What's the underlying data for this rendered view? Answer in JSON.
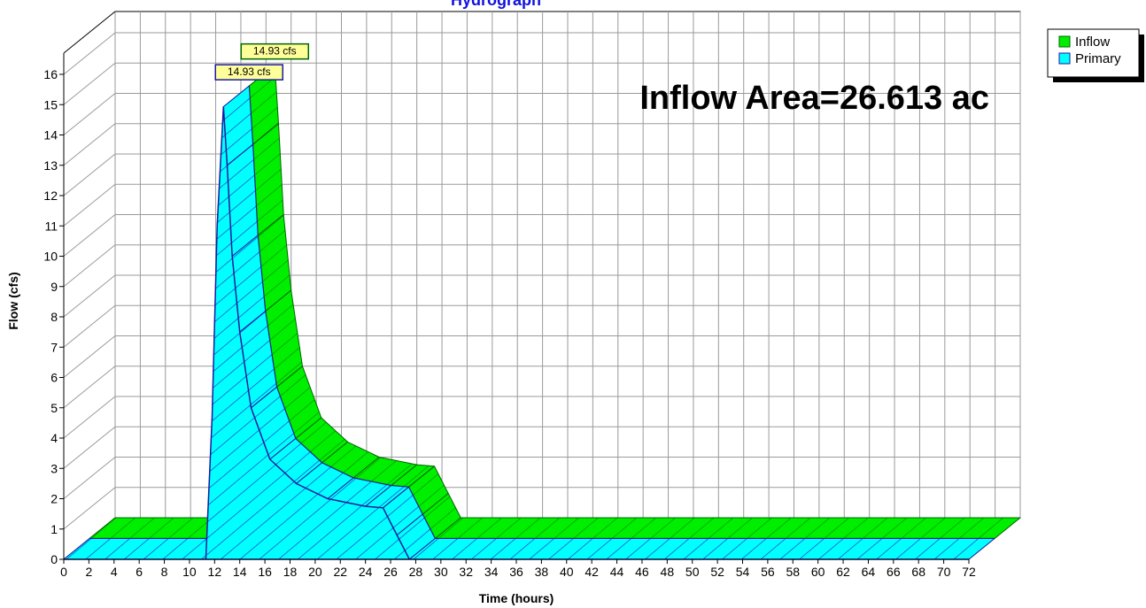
{
  "chart_data": {
    "type": "area3d",
    "title": "Hydrograph",
    "xlabel": "Time  (hours)",
    "ylabel": "Flow  (cfs)",
    "annotation": "Inflow Area=26.613 ac",
    "x": [
      0,
      11.3,
      11.8,
      12.2,
      12.7,
      13.0,
      13.4,
      14.0,
      14.9,
      16.4,
      18.5,
      21,
      24,
      25.4,
      26.5,
      27.5,
      72
    ],
    "series": [
      {
        "name": "Inflow",
        "color": "#00ee00",
        "edge": "#006600",
        "hatch": "#008800",
        "values": [
          0,
          0,
          4.7,
          11,
          14.93,
          13,
          10,
          7.5,
          5,
          3.3,
          2.5,
          2,
          1.75,
          1.7,
          0.8,
          0,
          0
        ],
        "value_labels": [
          null,
          null,
          null,
          null,
          "14.93 cfs",
          null,
          null,
          null,
          null,
          null,
          null,
          null,
          null,
          null,
          null,
          null,
          null
        ]
      },
      {
        "name": "Primary",
        "color": "#00ffff",
        "edge": "#1a1aa0",
        "hatch": "#2020c0",
        "values": [
          0,
          0,
          4.7,
          11,
          14.93,
          13,
          10,
          7.5,
          5,
          3.3,
          2.5,
          2,
          1.75,
          1.7,
          0.8,
          0,
          0
        ],
        "value_labels": [
          null,
          null,
          null,
          null,
          "14.93 cfs",
          null,
          null,
          null,
          null,
          null,
          null,
          null,
          null,
          null,
          null,
          null,
          null
        ]
      }
    ],
    "xlim": [
      0,
      72
    ],
    "xticks": [
      0,
      2,
      4,
      6,
      8,
      10,
      12,
      14,
      16,
      18,
      20,
      22,
      24,
      26,
      28,
      30,
      32,
      34,
      36,
      38,
      40,
      42,
      44,
      46,
      48,
      50,
      52,
      54,
      56,
      58,
      60,
      62,
      64,
      66,
      68,
      70,
      72
    ],
    "ylim": [
      0,
      16.7
    ],
    "yticks": [
      0,
      1,
      2,
      3,
      4,
      5,
      6,
      7,
      8,
      9,
      10,
      11,
      12,
      13,
      14,
      15,
      16
    ],
    "grid": true,
    "legend": "top-right"
  }
}
